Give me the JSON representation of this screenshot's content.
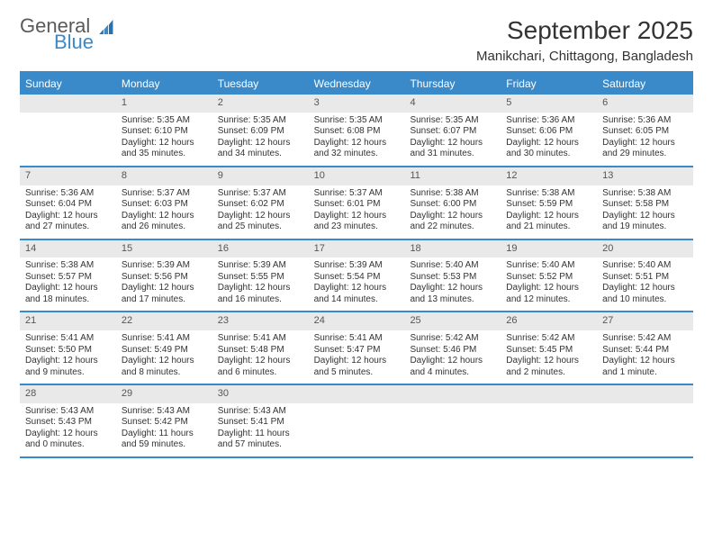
{
  "logo": {
    "line1": "General",
    "line2": "Blue"
  },
  "title": "September 2025",
  "subtitle": "Manikchari, Chittagong, Bangladesh",
  "colors": {
    "accent": "#3a8ac9",
    "header_row_bg": "#e9e9e9",
    "text": "#333333",
    "logo_gray": "#5a5a5a"
  },
  "days_of_week": [
    "Sunday",
    "Monday",
    "Tuesday",
    "Wednesday",
    "Thursday",
    "Friday",
    "Saturday"
  ],
  "weeks": [
    [
      {
        "n": "",
        "empty": true
      },
      {
        "n": "1",
        "sunrise": "Sunrise: 5:35 AM",
        "sunset": "Sunset: 6:10 PM",
        "day": "Daylight: 12 hours and 35 minutes."
      },
      {
        "n": "2",
        "sunrise": "Sunrise: 5:35 AM",
        "sunset": "Sunset: 6:09 PM",
        "day": "Daylight: 12 hours and 34 minutes."
      },
      {
        "n": "3",
        "sunrise": "Sunrise: 5:35 AM",
        "sunset": "Sunset: 6:08 PM",
        "day": "Daylight: 12 hours and 32 minutes."
      },
      {
        "n": "4",
        "sunrise": "Sunrise: 5:35 AM",
        "sunset": "Sunset: 6:07 PM",
        "day": "Daylight: 12 hours and 31 minutes."
      },
      {
        "n": "5",
        "sunrise": "Sunrise: 5:36 AM",
        "sunset": "Sunset: 6:06 PM",
        "day": "Daylight: 12 hours and 30 minutes."
      },
      {
        "n": "6",
        "sunrise": "Sunrise: 5:36 AM",
        "sunset": "Sunset: 6:05 PM",
        "day": "Daylight: 12 hours and 29 minutes."
      }
    ],
    [
      {
        "n": "7",
        "sunrise": "Sunrise: 5:36 AM",
        "sunset": "Sunset: 6:04 PM",
        "day": "Daylight: 12 hours and 27 minutes."
      },
      {
        "n": "8",
        "sunrise": "Sunrise: 5:37 AM",
        "sunset": "Sunset: 6:03 PM",
        "day": "Daylight: 12 hours and 26 minutes."
      },
      {
        "n": "9",
        "sunrise": "Sunrise: 5:37 AM",
        "sunset": "Sunset: 6:02 PM",
        "day": "Daylight: 12 hours and 25 minutes."
      },
      {
        "n": "10",
        "sunrise": "Sunrise: 5:37 AM",
        "sunset": "Sunset: 6:01 PM",
        "day": "Daylight: 12 hours and 23 minutes."
      },
      {
        "n": "11",
        "sunrise": "Sunrise: 5:38 AM",
        "sunset": "Sunset: 6:00 PM",
        "day": "Daylight: 12 hours and 22 minutes."
      },
      {
        "n": "12",
        "sunrise": "Sunrise: 5:38 AM",
        "sunset": "Sunset: 5:59 PM",
        "day": "Daylight: 12 hours and 21 minutes."
      },
      {
        "n": "13",
        "sunrise": "Sunrise: 5:38 AM",
        "sunset": "Sunset: 5:58 PM",
        "day": "Daylight: 12 hours and 19 minutes."
      }
    ],
    [
      {
        "n": "14",
        "sunrise": "Sunrise: 5:38 AM",
        "sunset": "Sunset: 5:57 PM",
        "day": "Daylight: 12 hours and 18 minutes."
      },
      {
        "n": "15",
        "sunrise": "Sunrise: 5:39 AM",
        "sunset": "Sunset: 5:56 PM",
        "day": "Daylight: 12 hours and 17 minutes."
      },
      {
        "n": "16",
        "sunrise": "Sunrise: 5:39 AM",
        "sunset": "Sunset: 5:55 PM",
        "day": "Daylight: 12 hours and 16 minutes."
      },
      {
        "n": "17",
        "sunrise": "Sunrise: 5:39 AM",
        "sunset": "Sunset: 5:54 PM",
        "day": "Daylight: 12 hours and 14 minutes."
      },
      {
        "n": "18",
        "sunrise": "Sunrise: 5:40 AM",
        "sunset": "Sunset: 5:53 PM",
        "day": "Daylight: 12 hours and 13 minutes."
      },
      {
        "n": "19",
        "sunrise": "Sunrise: 5:40 AM",
        "sunset": "Sunset: 5:52 PM",
        "day": "Daylight: 12 hours and 12 minutes."
      },
      {
        "n": "20",
        "sunrise": "Sunrise: 5:40 AM",
        "sunset": "Sunset: 5:51 PM",
        "day": "Daylight: 12 hours and 10 minutes."
      }
    ],
    [
      {
        "n": "21",
        "sunrise": "Sunrise: 5:41 AM",
        "sunset": "Sunset: 5:50 PM",
        "day": "Daylight: 12 hours and 9 minutes."
      },
      {
        "n": "22",
        "sunrise": "Sunrise: 5:41 AM",
        "sunset": "Sunset: 5:49 PM",
        "day": "Daylight: 12 hours and 8 minutes."
      },
      {
        "n": "23",
        "sunrise": "Sunrise: 5:41 AM",
        "sunset": "Sunset: 5:48 PM",
        "day": "Daylight: 12 hours and 6 minutes."
      },
      {
        "n": "24",
        "sunrise": "Sunrise: 5:41 AM",
        "sunset": "Sunset: 5:47 PM",
        "day": "Daylight: 12 hours and 5 minutes."
      },
      {
        "n": "25",
        "sunrise": "Sunrise: 5:42 AM",
        "sunset": "Sunset: 5:46 PM",
        "day": "Daylight: 12 hours and 4 minutes."
      },
      {
        "n": "26",
        "sunrise": "Sunrise: 5:42 AM",
        "sunset": "Sunset: 5:45 PM",
        "day": "Daylight: 12 hours and 2 minutes."
      },
      {
        "n": "27",
        "sunrise": "Sunrise: 5:42 AM",
        "sunset": "Sunset: 5:44 PM",
        "day": "Daylight: 12 hours and 1 minute."
      }
    ],
    [
      {
        "n": "28",
        "sunrise": "Sunrise: 5:43 AM",
        "sunset": "Sunset: 5:43 PM",
        "day": "Daylight: 12 hours and 0 minutes."
      },
      {
        "n": "29",
        "sunrise": "Sunrise: 5:43 AM",
        "sunset": "Sunset: 5:42 PM",
        "day": "Daylight: 11 hours and 59 minutes."
      },
      {
        "n": "30",
        "sunrise": "Sunrise: 5:43 AM",
        "sunset": "Sunset: 5:41 PM",
        "day": "Daylight: 11 hours and 57 minutes."
      },
      {
        "n": "",
        "empty": true
      },
      {
        "n": "",
        "empty": true
      },
      {
        "n": "",
        "empty": true
      },
      {
        "n": "",
        "empty": true
      }
    ]
  ]
}
